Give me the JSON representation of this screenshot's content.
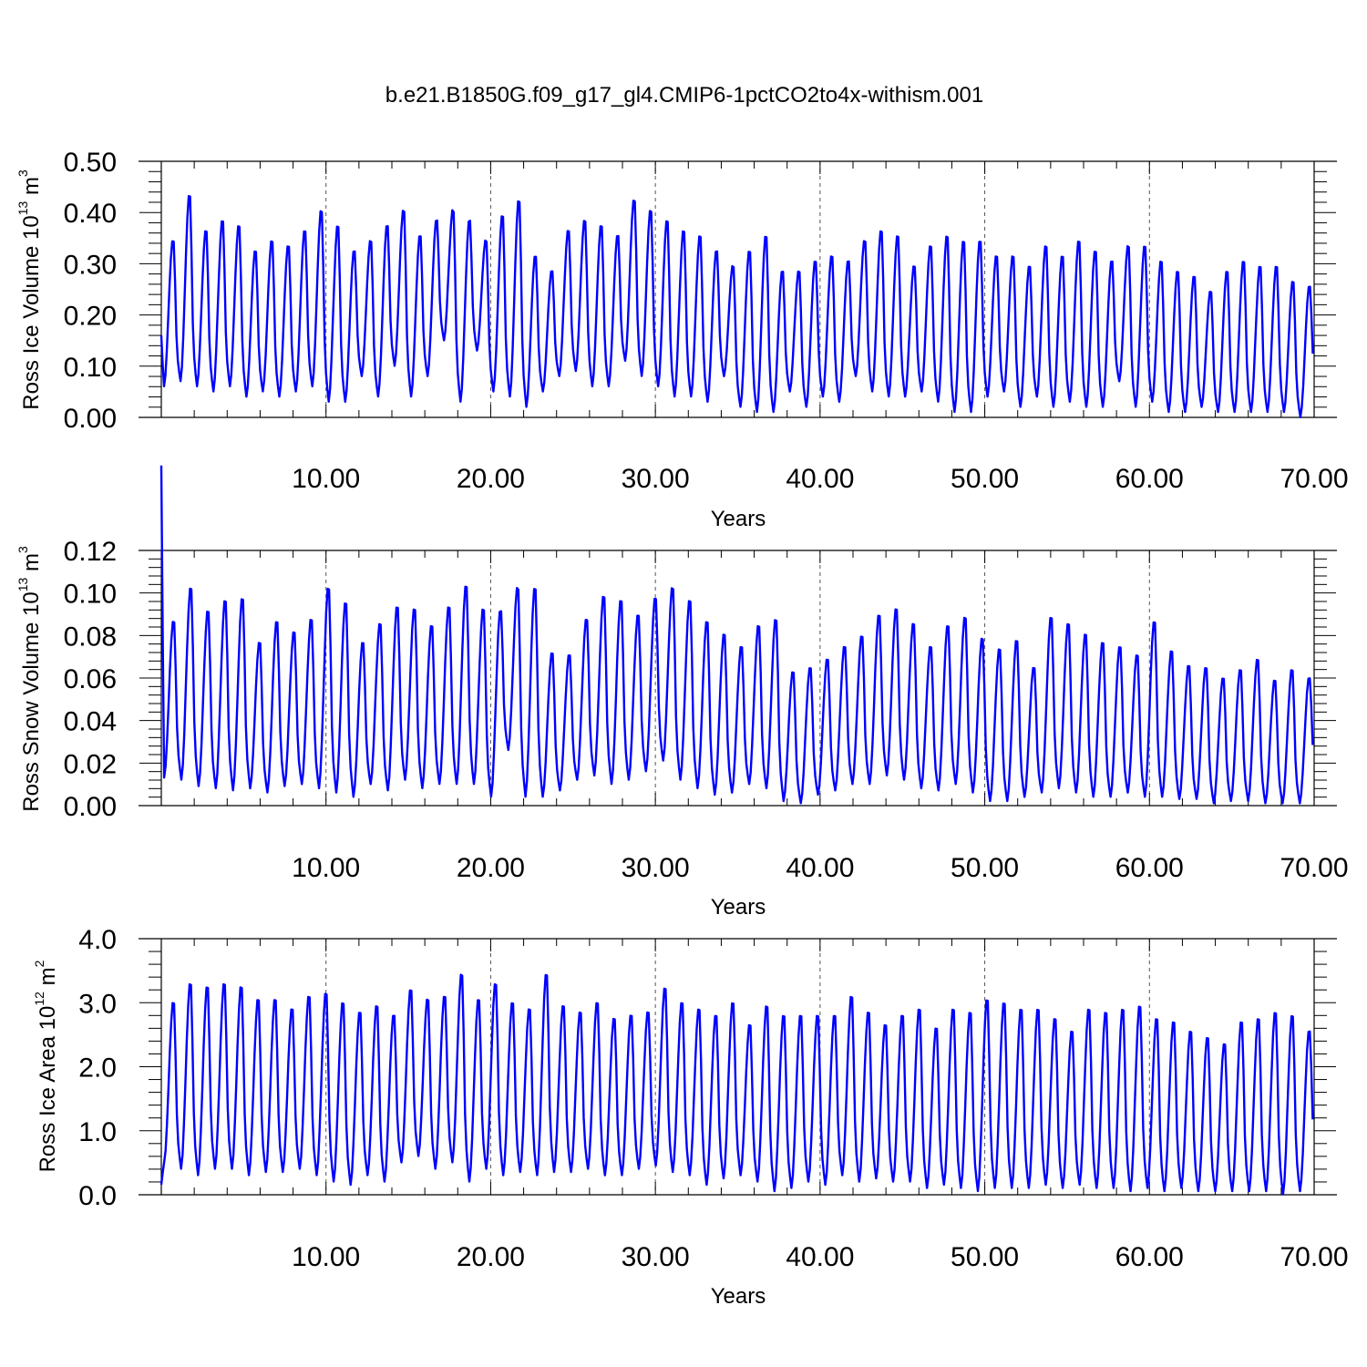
{
  "title": "b.e21.B1850G.f09_g17_gl4.CMIP6-1pctCO2to4x-withism.001",
  "colors": {
    "series": "#0000ff",
    "axes": "#000000",
    "grid": "#555555"
  },
  "chart_data": [
    {
      "type": "line",
      "ylabel_parts": [
        "Ross Ice Volume 10",
        "13",
        " m",
        "3"
      ],
      "xlabel": "Years",
      "xlim": [
        0,
        70
      ],
      "ylim": [
        0,
        0.5
      ],
      "xticks": [
        10,
        20,
        30,
        40,
        50,
        60,
        70
      ],
      "xtick_labels": [
        "10.00",
        "20.00",
        "30.00",
        "40.00",
        "50.00",
        "60.00",
        "70.00"
      ],
      "yticks": [
        0,
        0.1,
        0.2,
        0.3,
        0.4,
        0.5
      ],
      "ytick_labels": [
        "0.00",
        "0.10",
        "0.20",
        "0.30",
        "0.40",
        "0.50"
      ],
      "grid": "dashed vertical at major x ticks",
      "series": [
        {
          "annual_max": [
            0.35,
            0.44,
            0.37,
            0.39,
            0.38,
            0.33,
            0.35,
            0.34,
            0.37,
            0.41,
            0.38,
            0.33,
            0.35,
            0.38,
            0.41,
            0.36,
            0.39,
            0.41,
            0.39,
            0.35,
            0.4,
            0.43,
            0.32,
            0.29,
            0.37,
            0.39,
            0.38,
            0.36,
            0.43,
            0.41,
            0.39,
            0.37,
            0.36,
            0.33,
            0.3,
            0.33,
            0.36,
            0.29,
            0.29,
            0.31,
            0.32,
            0.31,
            0.35,
            0.37,
            0.36,
            0.3,
            0.34,
            0.36,
            0.35,
            0.35,
            0.32,
            0.32,
            0.3,
            0.34,
            0.32,
            0.35,
            0.33,
            0.31,
            0.34,
            0.34,
            0.31,
            0.29,
            0.28,
            0.25,
            0.29,
            0.31,
            0.3,
            0.3,
            0.27,
            0.26
          ],
          "annual_min": [
            0.06,
            0.07,
            0.06,
            0.05,
            0.06,
            0.04,
            0.05,
            0.04,
            0.05,
            0.06,
            0.03,
            0.03,
            0.08,
            0.04,
            0.1,
            0.04,
            0.08,
            0.15,
            0.03,
            0.13,
            0.05,
            0.04,
            0.02,
            0.05,
            0.08,
            0.09,
            0.06,
            0.06,
            0.11,
            0.08,
            0.06,
            0.04,
            0.04,
            0.03,
            0.08,
            0.02,
            0.01,
            0.01,
            0.05,
            0.02,
            0.04,
            0.03,
            0.08,
            0.05,
            0.04,
            0.04,
            0.05,
            0.03,
            0.01,
            0.01,
            0.04,
            0.05,
            0.02,
            0.04,
            0.02,
            0.03,
            0.02,
            0.02,
            0.07,
            0.02,
            0.03,
            0.01,
            0.01,
            0.02,
            0.01,
            0.01,
            0.01,
            0.01,
            0.01,
            0.0
          ]
        }
      ]
    },
    {
      "type": "line",
      "ylabel_parts": [
        "Ross Snow Volume 10",
        "13",
        " m",
        "3"
      ],
      "xlabel": "Years",
      "xlim": [
        0,
        70
      ],
      "ylim": [
        0,
        0.12
      ],
      "xticks": [
        10,
        20,
        30,
        40,
        50,
        60,
        70
      ],
      "xtick_labels": [
        "10.00",
        "20.00",
        "30.00",
        "40.00",
        "50.00",
        "60.00",
        "70.00"
      ],
      "yticks": [
        0,
        0.02,
        0.04,
        0.06,
        0.08,
        0.1,
        0.12
      ],
      "ytick_labels": [
        "0.00",
        "0.02",
        "0.04",
        "0.06",
        "0.08",
        "0.10",
        "0.12"
      ],
      "grid": "dashed vertical at major x ticks",
      "series": [
        {
          "annual_max": [
            0.088,
            0.104,
            0.093,
            0.098,
            0.099,
            0.078,
            0.088,
            0.083,
            0.089,
            0.104,
            0.097,
            0.078,
            0.087,
            0.095,
            0.094,
            0.086,
            0.095,
            0.105,
            0.094,
            0.093,
            0.104,
            0.104,
            0.073,
            0.072,
            0.089,
            0.1,
            0.098,
            0.091,
            0.099,
            0.104,
            0.098,
            0.088,
            0.082,
            0.076,
            0.086,
            0.089,
            0.064,
            0.066,
            0.07,
            0.076,
            0.081,
            0.091,
            0.094,
            0.087,
            0.076,
            0.086,
            0.09,
            0.08,
            0.075,
            0.079,
            0.066,
            0.09,
            0.087,
            0.082,
            0.078,
            0.076,
            0.072,
            0.088,
            0.074,
            0.067,
            0.066,
            0.061,
            0.065,
            0.07,
            0.06,
            0.065,
            0.061
          ],
          "annual_min": [
            0.013,
            0.012,
            0.009,
            0.008,
            0.007,
            0.008,
            0.006,
            0.009,
            0.01,
            0.008,
            0.006,
            0.004,
            0.01,
            0.007,
            0.012,
            0.008,
            0.01,
            0.01,
            0.01,
            0.004,
            0.026,
            0.004,
            0.004,
            0.007,
            0.012,
            0.014,
            0.01,
            0.012,
            0.016,
            0.021,
            0.012,
            0.008,
            0.005,
            0.006,
            0.01,
            0.008,
            0.002,
            0.001,
            0.005,
            0.007,
            0.01,
            0.01,
            0.014,
            0.012,
            0.008,
            0.007,
            0.01,
            0.006,
            0.002,
            0.002,
            0.004,
            0.006,
            0.008,
            0.006,
            0.004,
            0.004,
            0.006,
            0.004,
            0.004,
            0.003,
            0.003,
            0.001,
            0.002,
            0.002,
            0.001,
            0.001,
            0.001
          ]
        }
      ]
    },
    {
      "type": "line",
      "ylabel_parts": [
        "Ross Ice Area 10",
        "12",
        " m",
        "2"
      ],
      "xlabel": "Years",
      "xlim": [
        0,
        70
      ],
      "ylim": [
        0,
        4.0
      ],
      "xticks": [
        10,
        20,
        30,
        40,
        50,
        60,
        70
      ],
      "xtick_labels": [
        "10.00",
        "20.00",
        "30.00",
        "40.00",
        "50.00",
        "60.00",
        "70.00"
      ],
      "yticks": [
        0,
        1,
        2,
        3,
        4
      ],
      "ytick_labels": [
        "0.0",
        "1.0",
        "2.0",
        "3.0",
        "4.0"
      ],
      "grid": "dashed vertical at major x ticks",
      "series": [
        {
          "annual_max": [
            3.05,
            3.35,
            3.3,
            3.35,
            3.3,
            3.1,
            3.1,
            2.95,
            3.15,
            3.2,
            3.05,
            2.9,
            3.0,
            2.85,
            3.25,
            3.1,
            3.15,
            3.5,
            3.1,
            3.35,
            3.05,
            2.95,
            3.5,
            3.0,
            2.9,
            3.05,
            2.8,
            2.85,
            2.9,
            3.28,
            3.05,
            2.95,
            2.85,
            3.05,
            2.7,
            3.0,
            2.85,
            2.85,
            2.85,
            2.85,
            3.15,
            2.9,
            2.7,
            2.85,
            2.95,
            2.65,
            2.95,
            2.9,
            3.1,
            3.05,
            2.95,
            2.95,
            2.8,
            2.6,
            2.95,
            2.9,
            2.95,
            3.0,
            2.8,
            2.75,
            2.6,
            2.5,
            2.4,
            2.75,
            2.8,
            2.9,
            2.85,
            2.6
          ],
          "annual_min": [
            0.5,
            0.4,
            0.3,
            0.4,
            0.4,
            0.3,
            0.35,
            0.35,
            0.4,
            0.3,
            0.2,
            0.15,
            0.3,
            0.2,
            0.5,
            0.6,
            0.4,
            0.5,
            0.2,
            0.4,
            0.3,
            0.35,
            0.3,
            0.35,
            0.35,
            0.4,
            0.3,
            0.3,
            0.4,
            0.45,
            0.35,
            0.3,
            0.15,
            0.25,
            0.3,
            0.2,
            0.05,
            0.1,
            0.2,
            0.15,
            0.3,
            0.2,
            0.25,
            0.2,
            0.2,
            0.1,
            0.15,
            0.1,
            0.05,
            0.1,
            0.1,
            0.1,
            0.15,
            0.1,
            0.15,
            0.1,
            0.1,
            0.05,
            0.1,
            0.05,
            0.1,
            0.05,
            0.05,
            0.05,
            0.05,
            0.05,
            0.0,
            0.05
          ]
        }
      ]
    }
  ]
}
